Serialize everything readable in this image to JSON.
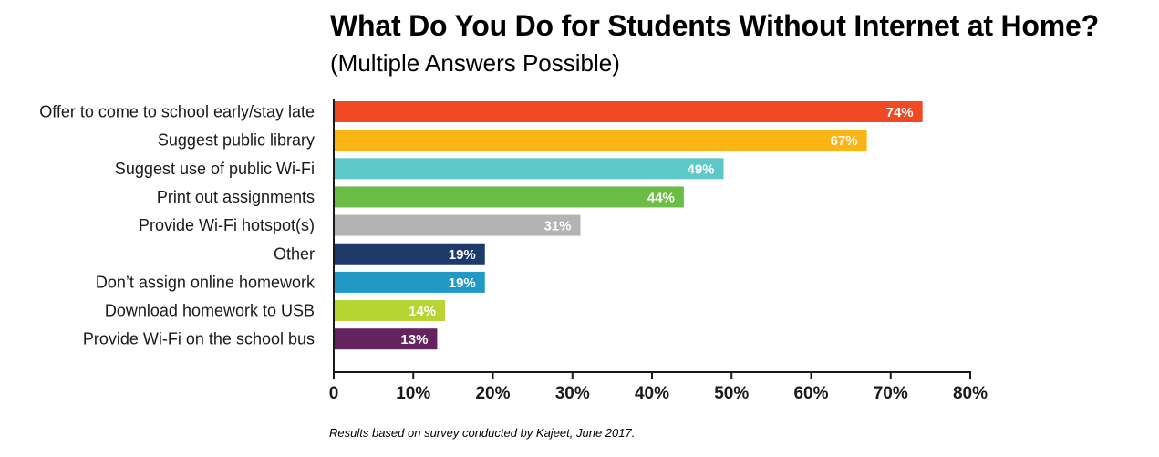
{
  "chart_data": {
    "type": "bar",
    "orientation": "horizontal",
    "title": "What Do You Do for Students Without Internet at Home?",
    "subtitle": "(Multiple Answers Possible)",
    "categories": [
      "Offer to come to school early/stay late",
      "Suggest public library",
      "Suggest use of public Wi-Fi",
      "Print out assignments",
      "Provide Wi-Fi hotspot(s)",
      "Other",
      "Don’t assign online homework",
      "Download homework to USB",
      "Provide Wi-Fi on the school bus"
    ],
    "values": [
      74,
      67,
      49,
      44,
      31,
      19,
      19,
      14,
      13
    ],
    "value_labels": [
      "74%",
      "67%",
      "49%",
      "44%",
      "31%",
      "19%",
      "19%",
      "14%",
      "13%"
    ],
    "colors": [
      "#f04923",
      "#fdb515",
      "#5ec8c8",
      "#6cbd45",
      "#b3b3b3",
      "#1d3a6b",
      "#2199c6",
      "#b7d433",
      "#64235e"
    ],
    "xlim": [
      0,
      80
    ],
    "x_ticks": [
      0,
      10,
      20,
      30,
      40,
      50,
      60,
      70,
      80
    ],
    "x_tick_labels": [
      "0",
      "10%",
      "20%",
      "30%",
      "40%",
      "50%",
      "60%",
      "70%",
      "80%"
    ],
    "xlabel": "",
    "ylabel": "",
    "grid": false,
    "legend": "none"
  },
  "footnote": "Results based on survey conducted by Kajeet, June 2017."
}
